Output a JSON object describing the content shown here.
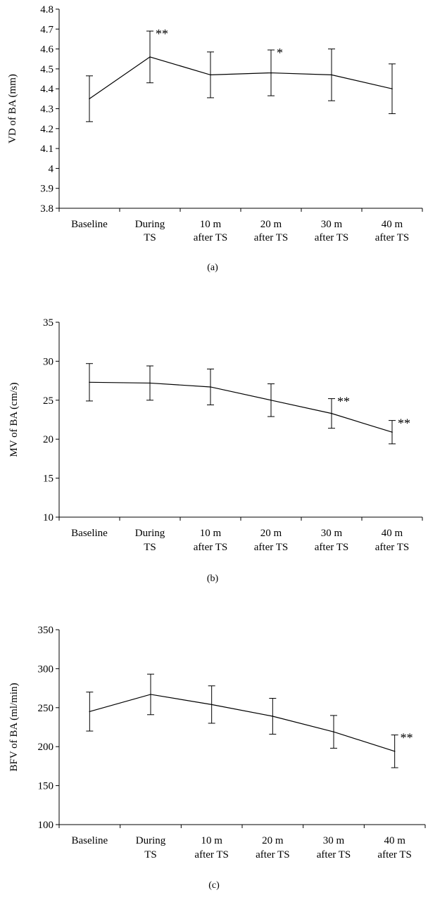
{
  "chart_data": [
    {
      "type": "line",
      "panel_label": "(a)",
      "ylabel": "VD of BA (mm)",
      "ylim": [
        3.8,
        4.8
      ],
      "yticks": [
        3.8,
        3.9,
        4,
        4.1,
        4.2,
        4.3,
        4.4,
        4.5,
        4.6,
        4.7,
        4.8
      ],
      "categories": [
        [
          "Baseline"
        ],
        [
          "During",
          "TS"
        ],
        [
          "10 m",
          "after TS"
        ],
        [
          "20 m",
          "after TS"
        ],
        [
          "30 m",
          "after TS"
        ],
        [
          "40 m",
          "after TS"
        ]
      ],
      "values": [
        4.35,
        4.56,
        4.47,
        4.48,
        4.47,
        4.4
      ],
      "errors": [
        0.115,
        0.13,
        0.115,
        0.115,
        0.13,
        0.125
      ],
      "significance": [
        "",
        "**",
        "",
        "*",
        "",
        ""
      ],
      "line_color": "#000000"
    },
    {
      "type": "line",
      "panel_label": "(b)",
      "ylabel": "MV of BA (cm/s)",
      "ylim": [
        10,
        35
      ],
      "yticks": [
        10,
        15,
        20,
        25,
        30,
        35
      ],
      "categories": [
        [
          "Baseline"
        ],
        [
          "During",
          "TS"
        ],
        [
          "10 m",
          "after TS"
        ],
        [
          "20 m",
          "after TS"
        ],
        [
          "30 m",
          "after TS"
        ],
        [
          "40 m",
          "after TS"
        ]
      ],
      "values": [
        27.3,
        27.2,
        26.7,
        25.0,
        23.3,
        20.9
      ],
      "errors": [
        2.4,
        2.2,
        2.3,
        2.1,
        1.9,
        1.5
      ],
      "significance": [
        "",
        "",
        "",
        "",
        "**",
        "**"
      ],
      "line_color": "#000000"
    },
    {
      "type": "line",
      "panel_label": "(c)",
      "ylabel": "BFV of BA (ml/min)",
      "ylim": [
        100,
        350
      ],
      "yticks": [
        100,
        150,
        200,
        250,
        300,
        350
      ],
      "categories": [
        [
          "Baseline"
        ],
        [
          "During",
          "TS"
        ],
        [
          "10 m",
          "after TS"
        ],
        [
          "20 m",
          "after TS"
        ],
        [
          "30 m",
          "after TS"
        ],
        [
          "40 m",
          "after TS"
        ]
      ],
      "values": [
        245,
        267,
        254,
        239,
        219,
        194
      ],
      "errors": [
        25,
        26,
        24,
        23,
        21,
        21
      ],
      "significance": [
        "",
        "",
        "",
        "",
        "",
        "**"
      ],
      "line_color": "#000000"
    }
  ]
}
